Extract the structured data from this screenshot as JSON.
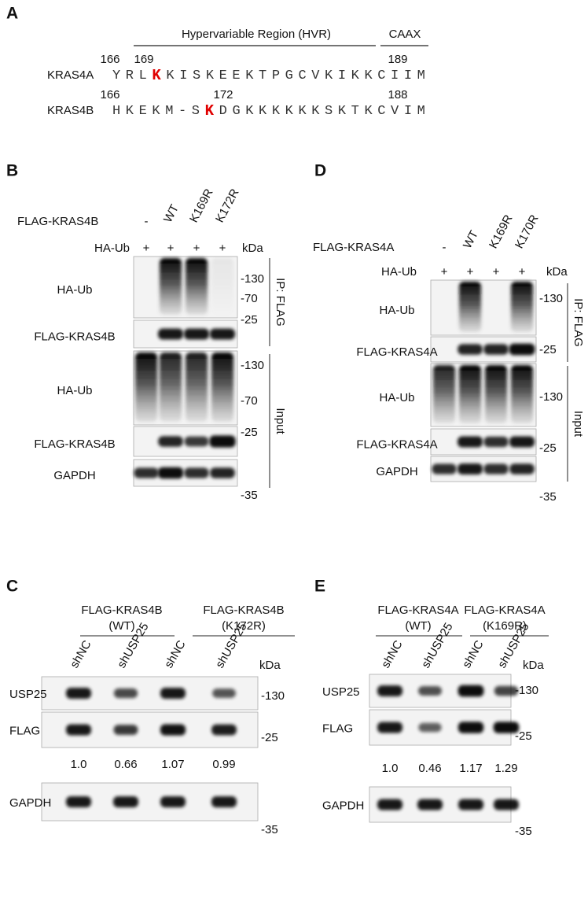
{
  "panel_a": {
    "label": "A",
    "hvr": "Hypervariable Region (HVR)",
    "caax": "CAAX",
    "rows": [
      {
        "name": "KRAS4A",
        "start": "166",
        "site": "169",
        "end": "189",
        "before": "YRL",
        "site_residue": "K",
        "after": "KISKEEKTPGCVKIKKCIIM"
      },
      {
        "name": "KRAS4B",
        "start": "166",
        "site": "172",
        "end": "188",
        "before": "HKEKM-S",
        "site_residue": "K",
        "after": "DGKKKKKKSKTKCVIM"
      }
    ]
  },
  "panel_b": {
    "label": "B",
    "construct": "FLAG-KRAS4B",
    "lanes": [
      "-",
      "WT",
      "K169R",
      "K172R"
    ],
    "ub_label": "HA-Ub",
    "ub_signs": [
      "+",
      "+",
      "+",
      "+"
    ],
    "kda": "kDa",
    "ip": {
      "label": "IP: FLAG",
      "blots": [
        {
          "name": "HA-Ub",
          "markers": [
            "-130",
            "-70"
          ]
        },
        {
          "name": "FLAG-KRAS4B",
          "markers": [
            "-25"
          ]
        }
      ]
    },
    "input": {
      "label": "Input",
      "blots": [
        {
          "name": "HA-Ub",
          "markers": [
            "-130",
            "-70"
          ]
        },
        {
          "name": "FLAG-KRAS4B",
          "markers": [
            "-25"
          ]
        },
        {
          "name": "GAPDH",
          "markers": [
            "-35"
          ]
        }
      ]
    }
  },
  "panel_d": {
    "label": "D",
    "construct": "FLAG-KRAS4A",
    "lanes": [
      "-",
      "WT",
      "K169R",
      "K170R"
    ],
    "ub_label": "HA-Ub",
    "ub_signs": [
      "+",
      "+",
      "+",
      "+"
    ],
    "kda": "kDa",
    "ip": {
      "label": "IP: FLAG",
      "blots": [
        {
          "name": "HA-Ub",
          "markers": [
            "-130"
          ]
        },
        {
          "name": "FLAG-KRAS4A",
          "markers": [
            "-25"
          ]
        }
      ]
    },
    "input": {
      "label": "Input",
      "blots": [
        {
          "name": "HA-Ub",
          "markers": [
            "-130"
          ]
        },
        {
          "name": "FLAG-KRAS4A",
          "markers": [
            "-25"
          ]
        },
        {
          "name": "GAPDH",
          "markers": [
            "-35"
          ]
        }
      ]
    }
  },
  "panel_c": {
    "label": "C",
    "groups": [
      {
        "lines": [
          "FLAG-KRAS4B",
          "(WT)"
        ]
      },
      {
        "lines": [
          "FLAG-KRAS4B",
          "(K172R)"
        ]
      }
    ],
    "lanes": [
      "shNC",
      "shUSP25",
      "shNC",
      "shUSP25"
    ],
    "kda": "kDa",
    "blots": [
      {
        "name": "USP25",
        "markers": [
          "-130"
        ]
      },
      {
        "name": "FLAG",
        "markers": [
          "-25"
        ]
      }
    ],
    "quantification": [
      "1.0",
      "0.66",
      "1.07",
      "0.99"
    ],
    "loading": {
      "name": "GAPDH",
      "markers": [
        "-35"
      ]
    }
  },
  "panel_e": {
    "label": "E",
    "groups": [
      {
        "lines": [
          "FLAG-KRAS4A",
          "(WT)"
        ]
      },
      {
        "lines": [
          "FLAG-KRAS4A",
          "(K169R)"
        ]
      }
    ],
    "lanes": [
      "shNC",
      "shUSP25",
      "shNC",
      "shUSP25"
    ],
    "kda": "kDa",
    "blots": [
      {
        "name": "USP25",
        "markers": [
          "-130"
        ]
      },
      {
        "name": "FLAG",
        "markers": [
          "-25"
        ]
      }
    ],
    "quantification": [
      "1.0",
      "0.46",
      "1.17",
      "1.29"
    ],
    "loading": {
      "name": "GAPDH",
      "markers": [
        "-35"
      ]
    }
  }
}
